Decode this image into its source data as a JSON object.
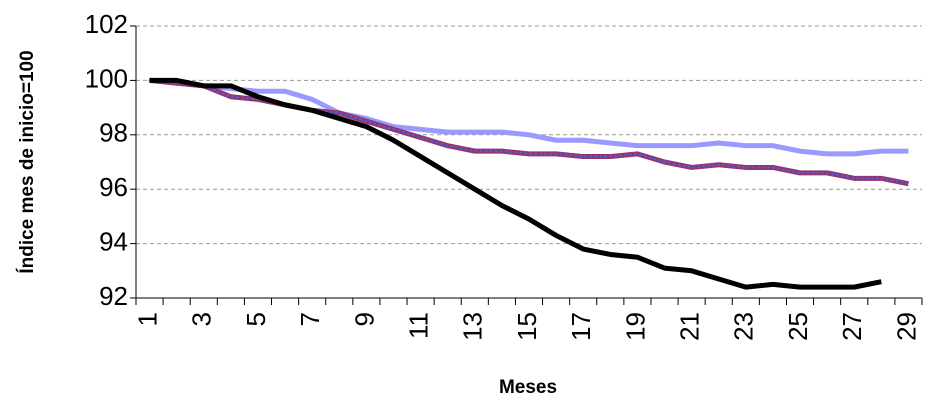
{
  "chart_data": {
    "type": "line",
    "x_label": "Meses",
    "y_label": "Índice mes de inicio=100",
    "categories": [
      "1",
      null,
      "3",
      null,
      "5",
      null,
      "7",
      null,
      "9",
      null,
      "11",
      null,
      "13",
      null,
      "15",
      null,
      "17",
      null,
      "19",
      null,
      "21",
      null,
      "23",
      null,
      "25",
      null,
      "27",
      null,
      "29"
    ],
    "series": [
      {
        "color": "#9999ff",
        "values": [
          100,
          99.9,
          99.8,
          99.7,
          99.6,
          99.6,
          99.3,
          98.8,
          98.6,
          98.3,
          98.2,
          98.1,
          98.1,
          98.1,
          98.0,
          97.8,
          97.8,
          97.7,
          97.6,
          97.6,
          97.6,
          97.7,
          97.6,
          97.6,
          97.4,
          97.3,
          97.3,
          97.4,
          97.4
        ]
      },
      {
        "color": "#993366",
        "dot_color": "#3366ff",
        "values": [
          100,
          99.9,
          99.8,
          99.4,
          99.3,
          99.1,
          98.9,
          98.8,
          98.5,
          98.2,
          97.9,
          97.6,
          97.4,
          97.4,
          97.3,
          97.3,
          97.2,
          97.2,
          97.3,
          97.0,
          96.8,
          96.9,
          96.8,
          96.8,
          96.6,
          96.6,
          96.4,
          96.4,
          96.2
        ]
      },
      {
        "color": "#000000",
        "values": [
          100,
          100,
          99.8,
          99.8,
          99.4,
          99.1,
          98.9,
          98.6,
          98.3,
          97.8,
          97.2,
          96.6,
          96.0,
          95.4,
          94.9,
          94.3,
          93.8,
          93.6,
          93.5,
          93.1,
          93.0,
          92.7,
          92.4,
          92.5,
          92.4,
          92.4,
          92.4,
          92.6,
          null
        ]
      }
    ],
    "ylim": [
      92,
      102
    ],
    "yticks": [
      92,
      94,
      96,
      98,
      100,
      102
    ],
    "grid": true
  }
}
